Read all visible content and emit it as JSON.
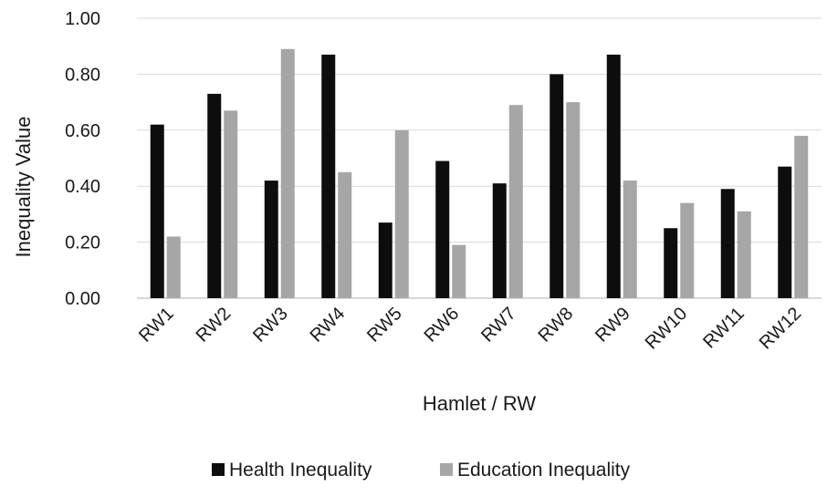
{
  "chart_data": {
    "type": "bar",
    "title": "",
    "xlabel": "Hamlet / RW",
    "ylabel": "Inequality Value",
    "ylim": [
      0,
      1
    ],
    "yticks": [
      "0.00",
      "0.20",
      "0.40",
      "0.60",
      "0.80",
      "1.00"
    ],
    "grid": true,
    "legend_position": "bottom",
    "categories": [
      "RW1",
      "RW2",
      "RW3",
      "RW4",
      "RW5",
      "RW6",
      "RW7",
      "RW8",
      "RW9",
      "RW10",
      "RW11",
      "RW12"
    ],
    "series": [
      {
        "name": "Health Inequality",
        "color": "#0d0d0d",
        "values": [
          0.62,
          0.73,
          0.42,
          0.87,
          0.27,
          0.49,
          0.41,
          0.8,
          0.87,
          0.25,
          0.39,
          0.47
        ]
      },
      {
        "name": "Education Inequality",
        "color": "#a6a6a6",
        "values": [
          0.22,
          0.67,
          0.89,
          0.45,
          0.6,
          0.19,
          0.69,
          0.7,
          0.42,
          0.34,
          0.31,
          0.58
        ]
      }
    ]
  }
}
